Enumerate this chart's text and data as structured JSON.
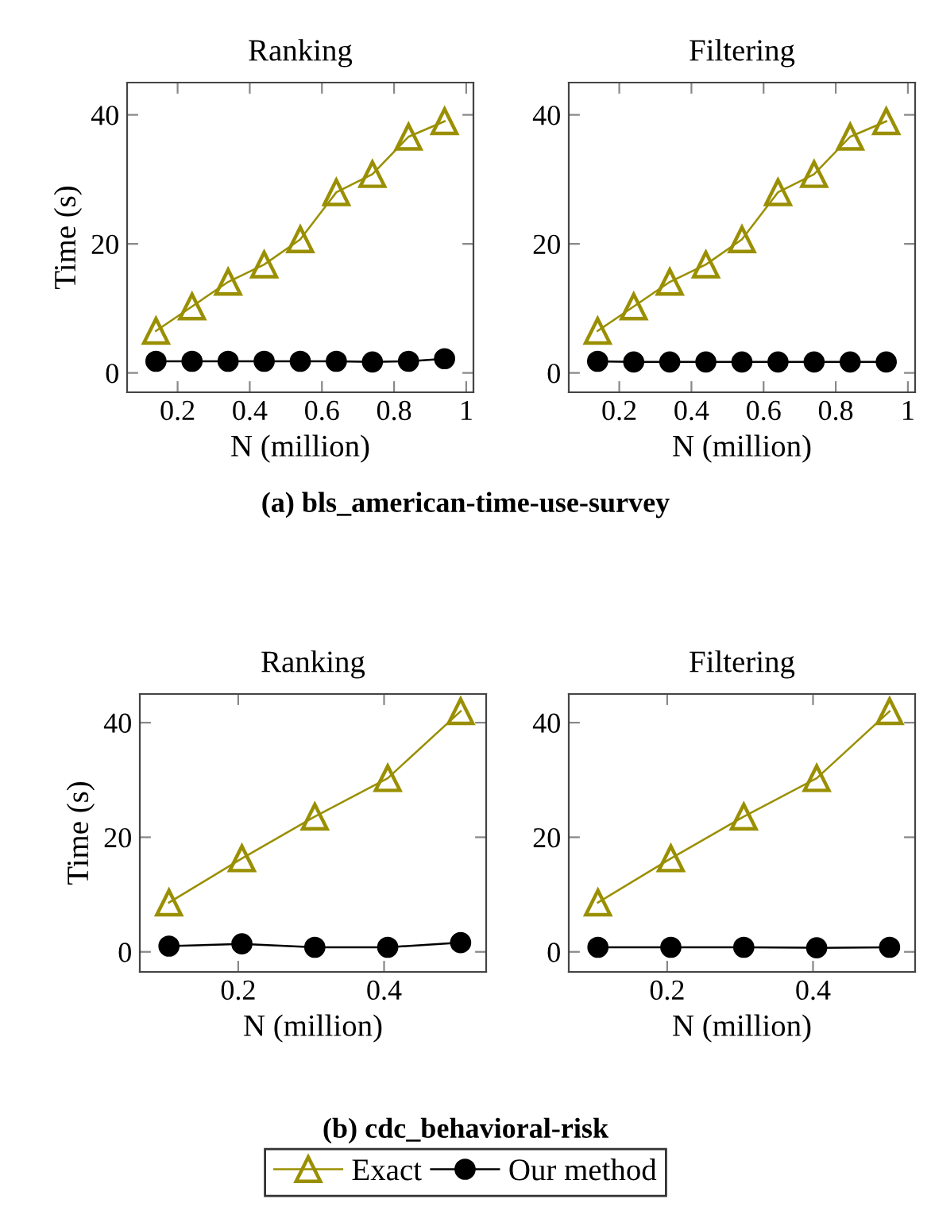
{
  "chart_data": [
    {
      "type": "line",
      "title": "Ranking",
      "xlabel": "N (million)",
      "ylabel": "Time (s)",
      "annotations": [
        "(a) bls_american-time-use-survey"
      ],
      "legend": "bottom",
      "x": [
        0.14,
        0.24,
        0.34,
        0.44,
        0.54,
        0.64,
        0.74,
        0.84,
        0.94
      ],
      "xlim": [
        0.06,
        1.02
      ],
      "xticks": [
        0.2,
        0.4,
        0.6,
        0.8,
        1
      ],
      "ylim": [
        -3,
        45
      ],
      "yticks": [
        0,
        20,
        40
      ],
      "series": [
        {
          "name": "Exact",
          "color": "#9a8f00",
          "marker": "triangle",
          "values": [
            6.5,
            10.3,
            14.1,
            16.8,
            20.7,
            28.0,
            30.8,
            36.6,
            39.0
          ]
        },
        {
          "name": "Our method",
          "color": "#000000",
          "marker": "circle",
          "values": [
            1.8,
            1.8,
            1.8,
            1.8,
            1.8,
            1.8,
            1.7,
            1.8,
            2.2
          ]
        }
      ]
    },
    {
      "type": "line",
      "title": "Filtering",
      "xlabel": "N (million)",
      "x": [
        0.14,
        0.24,
        0.34,
        0.44,
        0.54,
        0.64,
        0.74,
        0.84,
        0.94
      ],
      "xlim": [
        0.06,
        1.02
      ],
      "xticks": [
        0.2,
        0.4,
        0.6,
        0.8,
        1
      ],
      "ylim": [
        -3,
        45
      ],
      "yticks": [
        0,
        20,
        40
      ],
      "series": [
        {
          "color": "#9a8f00",
          "marker": "triangle",
          "values": [
            6.5,
            10.3,
            14.1,
            16.8,
            20.7,
            28.0,
            30.8,
            36.6,
            39.0
          ]
        },
        {
          "color": "#000000",
          "marker": "circle",
          "values": [
            1.8,
            1.7,
            1.7,
            1.7,
            1.7,
            1.7,
            1.7,
            1.7,
            1.7
          ]
        }
      ]
    },
    {
      "type": "line",
      "title": "Ranking",
      "xlabel": "N (million)",
      "ylabel": "Time (s)",
      "annotations": [
        "(b) cdc_behavioral-risk"
      ],
      "x": [
        0.105,
        0.205,
        0.305,
        0.405,
        0.505
      ],
      "xlim": [
        0.065,
        0.54
      ],
      "xticks": [
        0.2,
        0.4
      ],
      "ylim": [
        -3.5,
        45
      ],
      "yticks": [
        0,
        20,
        40
      ],
      "series": [
        {
          "color": "#9a8f00",
          "marker": "triangle",
          "values": [
            8.6,
            16.3,
            23.6,
            30.3,
            42.0
          ]
        },
        {
          "color": "#000000",
          "marker": "circle",
          "values": [
            1.0,
            1.4,
            0.8,
            0.8,
            1.6
          ]
        }
      ]
    },
    {
      "type": "line",
      "title": "Filtering",
      "xlabel": "N (million)",
      "x": [
        0.105,
        0.205,
        0.305,
        0.405,
        0.505
      ],
      "xlim": [
        0.065,
        0.54
      ],
      "xticks": [
        0.2,
        0.4
      ],
      "ylim": [
        -3.5,
        45
      ],
      "yticks": [
        0,
        20,
        40
      ],
      "series": [
        {
          "color": "#9a8f00",
          "marker": "triangle",
          "values": [
            8.6,
            16.3,
            23.6,
            30.3,
            42.0
          ]
        },
        {
          "color": "#000000",
          "marker": "circle",
          "values": [
            0.8,
            0.8,
            0.8,
            0.7,
            0.8
          ]
        }
      ]
    }
  ]
}
